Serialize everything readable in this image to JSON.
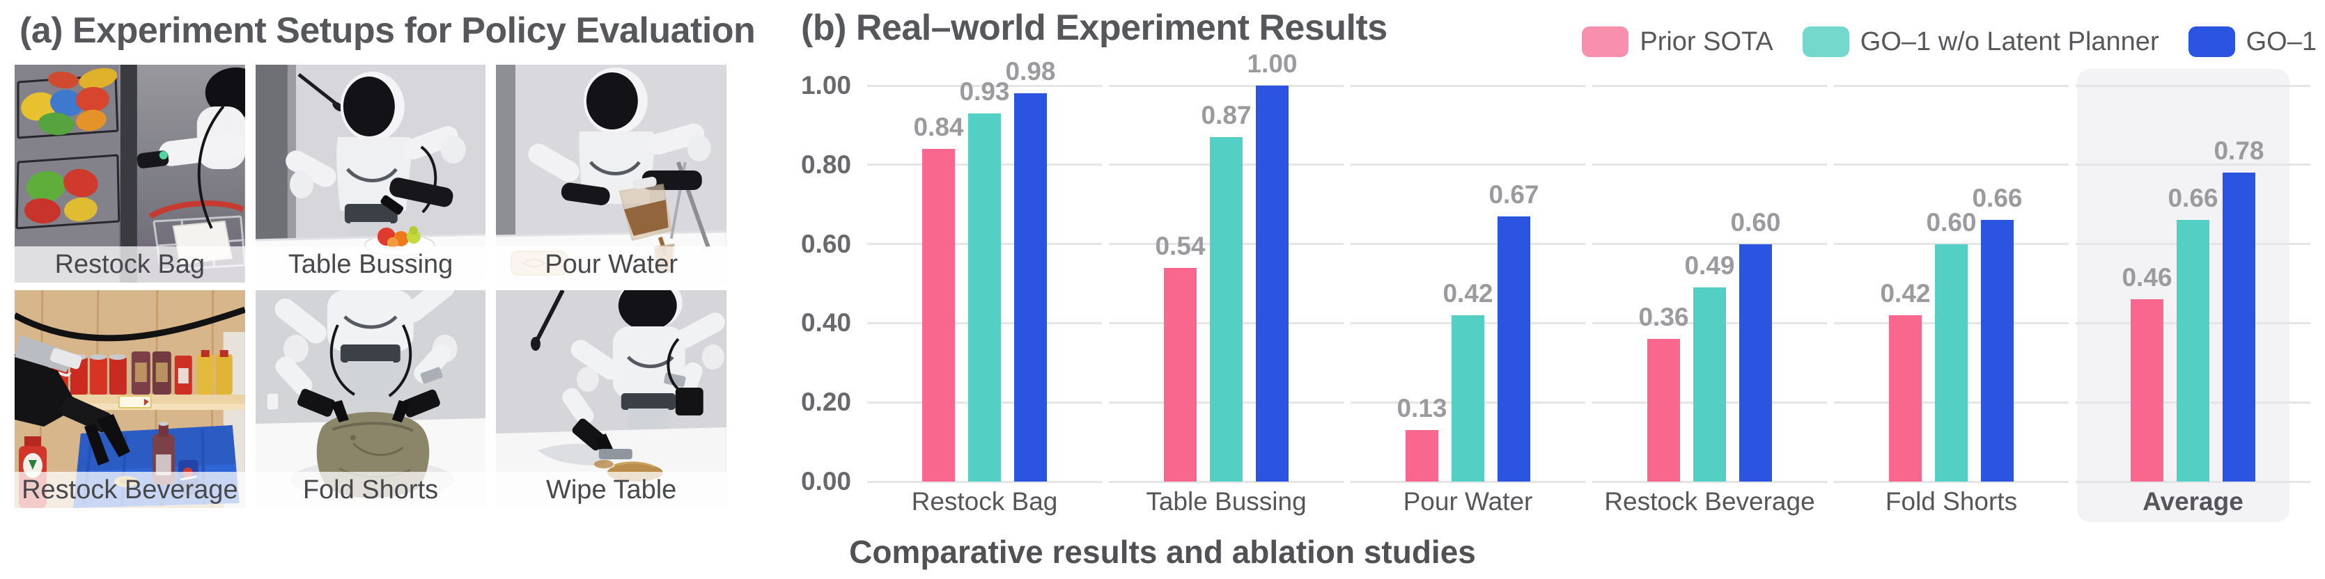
{
  "panel_a": {
    "title": "(a) Experiment Setups for Policy Evaluation",
    "photos": [
      {
        "label": "Restock Bag"
      },
      {
        "label": "Table Bussing"
      },
      {
        "label": "Pour Water"
      },
      {
        "label": "Restock Beverage"
      },
      {
        "label": "Fold Shorts"
      },
      {
        "label": "Wipe Table"
      }
    ]
  },
  "panel_b": {
    "title": "(b) Real–world Experiment Results",
    "caption": "Comparative results and ablation studies"
  },
  "legend": {
    "position": "top-right",
    "items": [
      {
        "label": "Prior SOTA",
        "swatch_color": "#F88FAC",
        "bar_color": "#F9678E"
      },
      {
        "label": "GO–1 w/o Latent Planner",
        "swatch_color": "#74D8CD",
        "bar_color": "#54CFC4"
      },
      {
        "label": "GO–1",
        "swatch_color": "#2B54E0",
        "bar_color": "#2B54E0"
      }
    ]
  },
  "chart_data": {
    "type": "bar",
    "title": "(b) Real–world Experiment Results",
    "categories": [
      "Restock Bag",
      "Table Bussing",
      "Pour Water",
      "Restock Beverage",
      "Fold Shorts",
      "Average"
    ],
    "series": [
      {
        "name": "Prior SOTA",
        "values": [
          0.84,
          0.54,
          0.13,
          0.36,
          0.42,
          0.46
        ]
      },
      {
        "name": "GO–1 w/o Latent Planner",
        "values": [
          0.93,
          0.87,
          0.42,
          0.49,
          0.6,
          0.66
        ]
      },
      {
        "name": "GO–1",
        "values": [
          0.98,
          1.0,
          0.67,
          0.6,
          0.66,
          0.78
        ]
      }
    ],
    "xlabel": "",
    "ylabel": "",
    "ylim": [
      0,
      1
    ],
    "yticks": [
      "1.00",
      "0.80",
      "0.60",
      "0.40",
      "0.20",
      "0.00"
    ],
    "grid": "horizontal",
    "value_labels": true,
    "legend_position": "top-right",
    "highlight_category": "Average"
  },
  "colors": {
    "title": "#56575B",
    "grid": "#E5E5E8",
    "highlight_box": "#F3F3F5",
    "value_label": "#9B9B9F",
    "axis_label": "#69696D",
    "category_label": "#55555A"
  }
}
